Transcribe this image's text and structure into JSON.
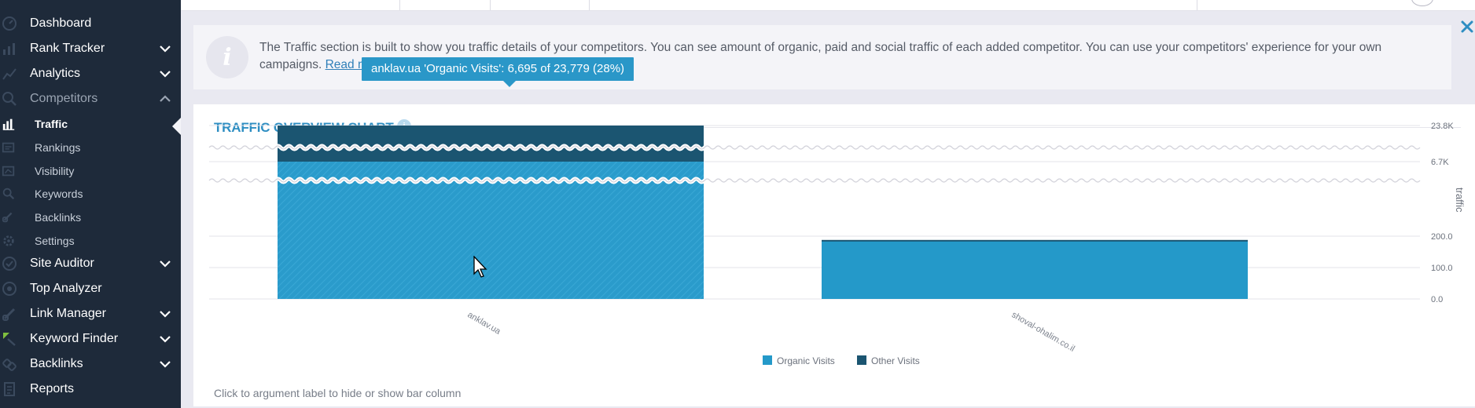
{
  "sidebar": {
    "items": [
      {
        "label": "Dashboard",
        "icon": "dashboard-icon"
      },
      {
        "label": "Rank Tracker",
        "icon": "bar-chart-icon"
      },
      {
        "label": "Analytics",
        "icon": "analytics-icon"
      },
      {
        "label": "Competitors",
        "icon": "competitors-icon"
      },
      {
        "label": "Site Auditor",
        "icon": "site-auditor-icon"
      },
      {
        "label": "Top Analyzer",
        "icon": "top-analyzer-icon"
      },
      {
        "label": "Link Manager",
        "icon": "link-icon"
      },
      {
        "label": "Keyword Finder",
        "icon": "keyword-finder-icon"
      },
      {
        "label": "Backlinks",
        "icon": "backlinks-icon"
      },
      {
        "label": "Reports",
        "icon": "reports-icon"
      }
    ],
    "competitors_sub": [
      {
        "label": "Traffic",
        "icon": "traffic-icon"
      },
      {
        "label": "Rankings",
        "icon": "rankings-icon"
      },
      {
        "label": "Visibility",
        "icon": "visibility-icon"
      },
      {
        "label": "Keywords",
        "icon": "keywords-icon"
      },
      {
        "label": "Backlinks",
        "icon": "backlinks-sub-icon"
      },
      {
        "label": "Settings",
        "icon": "settings-icon"
      }
    ]
  },
  "info": {
    "text": "The Traffic section is built to show you traffic details of your competitors. You can see amount of organic, paid and social traffic of each added competitor. You can use your competitors' experience for your own campaigns.",
    "link": "Read more..."
  },
  "chart_section": {
    "title": "TRAFFIC OVERVIEW CHART",
    "hint": "Click to argument label to hide or show bar column",
    "tooltip": "anklav.ua 'Organic Visits': 6,695 of 23,779 (28%)"
  },
  "colors": {
    "sidebar_bg": "#1e2a3a",
    "organic": "#2499c9",
    "other": "#1b5571",
    "accent": "#2e8ec2"
  },
  "chart_data": {
    "type": "bar",
    "stacked": true,
    "axis_break": true,
    "categories": [
      "anklav.ua",
      "shoval-ohalim.co.il"
    ],
    "series": [
      {
        "name": "Organic Visits",
        "values": [
          6695,
          185
        ]
      },
      {
        "name": "Other Visits",
        "values": [
          17084,
          3
        ]
      }
    ],
    "y_ticks": [
      "23.8K",
      "6.7K",
      "200.0",
      "100.0",
      "0.0"
    ],
    "ylabel": "traffic",
    "legend_position": "bottom",
    "grid": true
  }
}
